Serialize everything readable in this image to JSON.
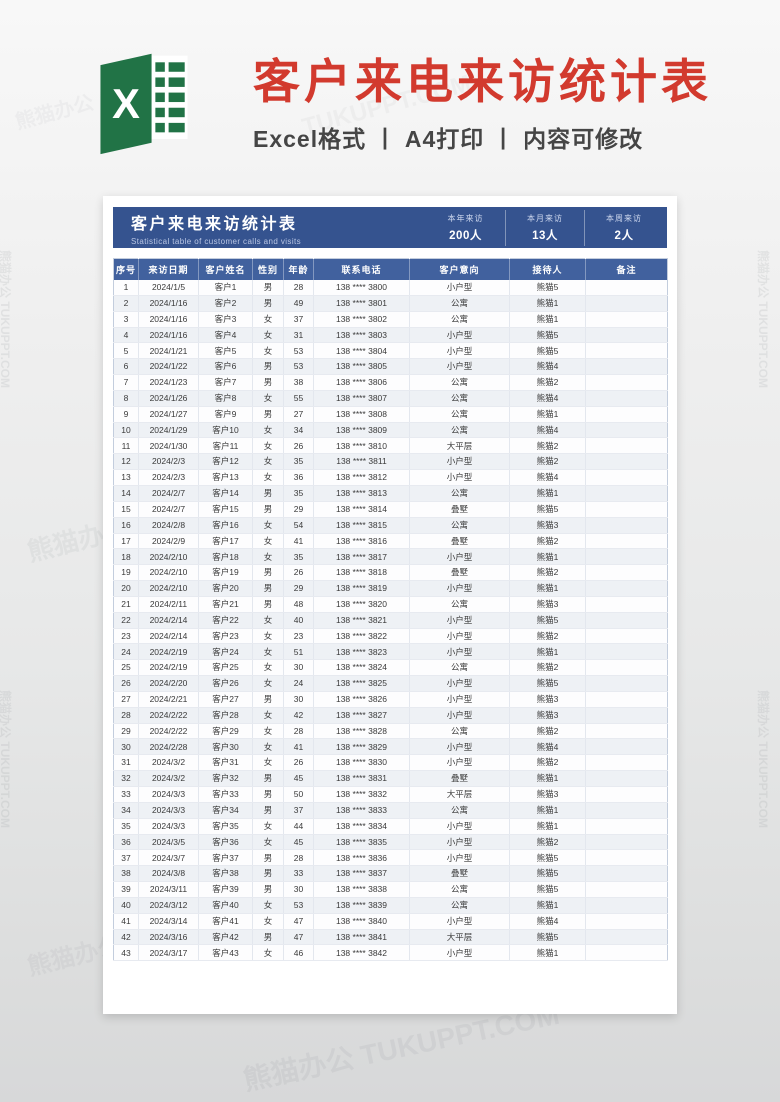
{
  "banner": {
    "logo_letter": "X",
    "title": "客户来电来访统计表",
    "subtitle": "Excel格式 丨 A4打印 丨 内容可修改"
  },
  "sheet_header": {
    "title": "客户来电来访统计表",
    "subtitle": "Statistical table of customer calls and visits",
    "stats": [
      {
        "label": "本年来访",
        "value": "200人"
      },
      {
        "label": "本月来访",
        "value": "13人"
      },
      {
        "label": "本周来访",
        "value": "2人"
      }
    ]
  },
  "table": {
    "columns": [
      "序号",
      "来访日期",
      "客户姓名",
      "性别",
      "年龄",
      "联系电话",
      "客户意向",
      "接待人",
      "备注"
    ],
    "rows": [
      [
        1,
        "2024/1/5",
        "客户1",
        "男",
        28,
        "138 **** 3800",
        "小户型",
        "熊猫5",
        ""
      ],
      [
        2,
        "2024/1/16",
        "客户2",
        "男",
        49,
        "138 **** 3801",
        "公寓",
        "熊猫1",
        ""
      ],
      [
        3,
        "2024/1/16",
        "客户3",
        "女",
        37,
        "138 **** 3802",
        "公寓",
        "熊猫1",
        ""
      ],
      [
        4,
        "2024/1/16",
        "客户4",
        "女",
        31,
        "138 **** 3803",
        "小户型",
        "熊猫5",
        ""
      ],
      [
        5,
        "2024/1/21",
        "客户5",
        "女",
        53,
        "138 **** 3804",
        "小户型",
        "熊猫5",
        ""
      ],
      [
        6,
        "2024/1/22",
        "客户6",
        "男",
        53,
        "138 **** 3805",
        "小户型",
        "熊猫4",
        ""
      ],
      [
        7,
        "2024/1/23",
        "客户7",
        "男",
        38,
        "138 **** 3806",
        "公寓",
        "熊猫2",
        ""
      ],
      [
        8,
        "2024/1/26",
        "客户8",
        "女",
        55,
        "138 **** 3807",
        "公寓",
        "熊猫4",
        ""
      ],
      [
        9,
        "2024/1/27",
        "客户9",
        "男",
        27,
        "138 **** 3808",
        "公寓",
        "熊猫1",
        ""
      ],
      [
        10,
        "2024/1/29",
        "客户10",
        "女",
        34,
        "138 **** 3809",
        "公寓",
        "熊猫4",
        ""
      ],
      [
        11,
        "2024/1/30",
        "客户11",
        "女",
        26,
        "138 **** 3810",
        "大平层",
        "熊猫2",
        ""
      ],
      [
        12,
        "2024/2/3",
        "客户12",
        "女",
        35,
        "138 **** 3811",
        "小户型",
        "熊猫2",
        ""
      ],
      [
        13,
        "2024/2/3",
        "客户13",
        "女",
        36,
        "138 **** 3812",
        "小户型",
        "熊猫4",
        ""
      ],
      [
        14,
        "2024/2/7",
        "客户14",
        "男",
        35,
        "138 **** 3813",
        "公寓",
        "熊猫1",
        ""
      ],
      [
        15,
        "2024/2/7",
        "客户15",
        "男",
        29,
        "138 **** 3814",
        "叠墅",
        "熊猫5",
        ""
      ],
      [
        16,
        "2024/2/8",
        "客户16",
        "女",
        54,
        "138 **** 3815",
        "公寓",
        "熊猫3",
        ""
      ],
      [
        17,
        "2024/2/9",
        "客户17",
        "女",
        41,
        "138 **** 3816",
        "叠墅",
        "熊猫2",
        ""
      ],
      [
        18,
        "2024/2/10",
        "客户18",
        "女",
        35,
        "138 **** 3817",
        "小户型",
        "熊猫1",
        ""
      ],
      [
        19,
        "2024/2/10",
        "客户19",
        "男",
        26,
        "138 **** 3818",
        "叠墅",
        "熊猫2",
        ""
      ],
      [
        20,
        "2024/2/10",
        "客户20",
        "男",
        29,
        "138 **** 3819",
        "小户型",
        "熊猫1",
        ""
      ],
      [
        21,
        "2024/2/11",
        "客户21",
        "男",
        48,
        "138 **** 3820",
        "公寓",
        "熊猫3",
        ""
      ],
      [
        22,
        "2024/2/14",
        "客户22",
        "女",
        40,
        "138 **** 3821",
        "小户型",
        "熊猫5",
        ""
      ],
      [
        23,
        "2024/2/14",
        "客户23",
        "女",
        23,
        "138 **** 3822",
        "小户型",
        "熊猫2",
        ""
      ],
      [
        24,
        "2024/2/19",
        "客户24",
        "女",
        51,
        "138 **** 3823",
        "小户型",
        "熊猫1",
        ""
      ],
      [
        25,
        "2024/2/19",
        "客户25",
        "女",
        30,
        "138 **** 3824",
        "公寓",
        "熊猫2",
        ""
      ],
      [
        26,
        "2024/2/20",
        "客户26",
        "女",
        24,
        "138 **** 3825",
        "小户型",
        "熊猫5",
        ""
      ],
      [
        27,
        "2024/2/21",
        "客户27",
        "男",
        30,
        "138 **** 3826",
        "小户型",
        "熊猫3",
        ""
      ],
      [
        28,
        "2024/2/22",
        "客户28",
        "女",
        42,
        "138 **** 3827",
        "小户型",
        "熊猫3",
        ""
      ],
      [
        29,
        "2024/2/22",
        "客户29",
        "女",
        28,
        "138 **** 3828",
        "公寓",
        "熊猫2",
        ""
      ],
      [
        30,
        "2024/2/28",
        "客户30",
        "女",
        41,
        "138 **** 3829",
        "小户型",
        "熊猫4",
        ""
      ],
      [
        31,
        "2024/3/2",
        "客户31",
        "女",
        26,
        "138 **** 3830",
        "小户型",
        "熊猫2",
        ""
      ],
      [
        32,
        "2024/3/2",
        "客户32",
        "男",
        45,
        "138 **** 3831",
        "叠墅",
        "熊猫1",
        ""
      ],
      [
        33,
        "2024/3/3",
        "客户33",
        "男",
        50,
        "138 **** 3832",
        "大平层",
        "熊猫3",
        ""
      ],
      [
        34,
        "2024/3/3",
        "客户34",
        "男",
        37,
        "138 **** 3833",
        "公寓",
        "熊猫1",
        ""
      ],
      [
        35,
        "2024/3/3",
        "客户35",
        "女",
        44,
        "138 **** 3834",
        "小户型",
        "熊猫1",
        ""
      ],
      [
        36,
        "2024/3/5",
        "客户36",
        "女",
        45,
        "138 **** 3835",
        "小户型",
        "熊猫2",
        ""
      ],
      [
        37,
        "2024/3/7",
        "客户37",
        "男",
        28,
        "138 **** 3836",
        "小户型",
        "熊猫5",
        ""
      ],
      [
        38,
        "2024/3/8",
        "客户38",
        "男",
        33,
        "138 **** 3837",
        "叠墅",
        "熊猫5",
        ""
      ],
      [
        39,
        "2024/3/11",
        "客户39",
        "男",
        30,
        "138 **** 3838",
        "公寓",
        "熊猫5",
        ""
      ],
      [
        40,
        "2024/3/12",
        "客户40",
        "女",
        53,
        "138 **** 3839",
        "公寓",
        "熊猫1",
        ""
      ],
      [
        41,
        "2024/3/14",
        "客户41",
        "女",
        47,
        "138 **** 3840",
        "小户型",
        "熊猫4",
        ""
      ],
      [
        42,
        "2024/3/16",
        "客户42",
        "男",
        47,
        "138 **** 3841",
        "大平层",
        "熊猫5",
        ""
      ],
      [
        43,
        "2024/3/17",
        "客户43",
        "女",
        46,
        "138 **** 3842",
        "小户型",
        "熊猫1",
        ""
      ]
    ]
  },
  "watermark": {
    "text": "熊猫办公 TUKUPPT.COM",
    "short": "熊猫办公",
    "domain": "TUKUPPT.COM"
  },
  "colors": {
    "banner_title_red": "#d23a2e",
    "excel_green": "#217346",
    "header_bar_blue": "#35538f",
    "column_header_blue": "#41619e",
    "row_stripe": "#eef1f5"
  }
}
